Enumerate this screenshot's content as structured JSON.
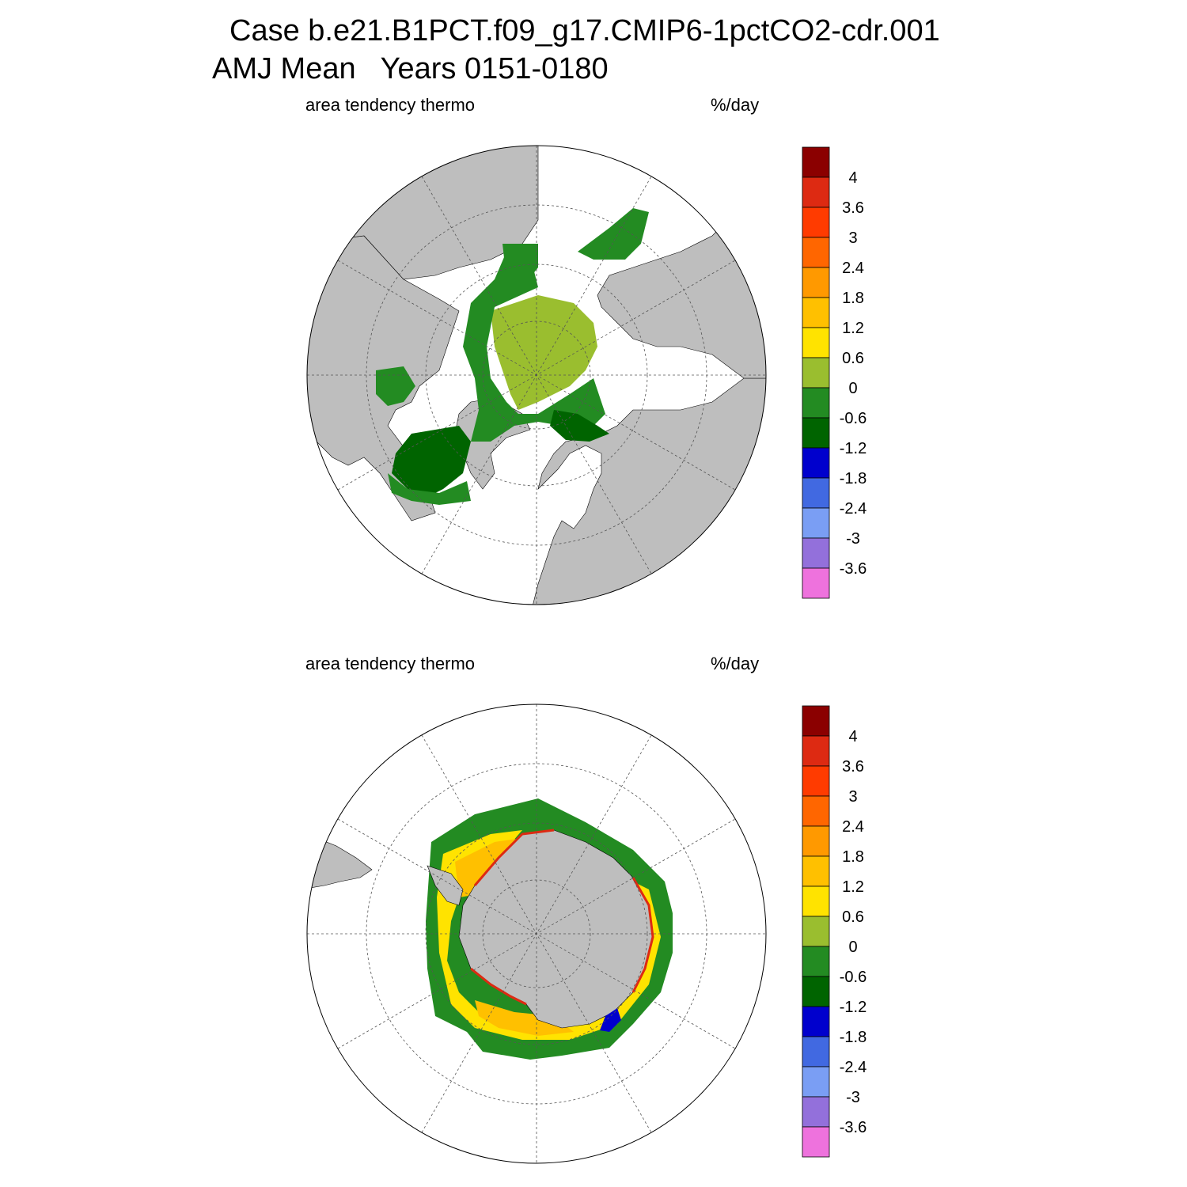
{
  "header": {
    "case_line": "Case b.e21.B1PCT.f09_g17.CMIP6-1pctCO2-cdr.001",
    "season_label": "AMJ Mean",
    "years_label": "Years 0151-0180"
  },
  "panels": [
    {
      "hemisphere": "north",
      "left_label": "area tendency thermo",
      "units": "%/day"
    },
    {
      "hemisphere": "south",
      "left_label": "area tendency thermo",
      "units": "%/day"
    }
  ],
  "colorbar": {
    "labels": [
      "4",
      "3.6",
      "3",
      "2.4",
      "1.8",
      "1.2",
      "0.6",
      "0",
      "-0.6",
      "-1.2",
      "-1.8",
      "-2.4",
      "-3",
      "-3.6"
    ],
    "colors": [
      "#8b0000",
      "#dd2a12",
      "#ff3b00",
      "#ff6600",
      "#ff9900",
      "#ffc000",
      "#ffe300",
      "#9abe2f",
      "#238b22",
      "#006400",
      "#0000cd",
      "#4169e1",
      "#7a9ef4",
      "#9370db",
      "#ee72dd"
    ]
  },
  "map_colors": {
    "land": "#bebebe",
    "ocean": "#ffffff",
    "grid": "#555555"
  }
}
